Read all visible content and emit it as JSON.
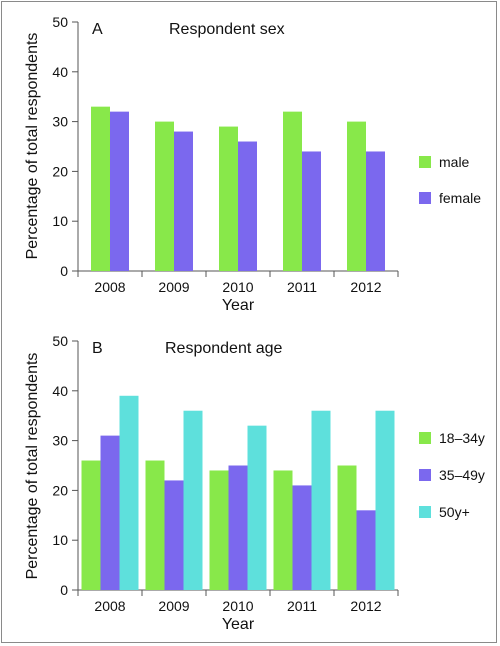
{
  "chart_data": [
    {
      "type": "bar",
      "panel_label": "A",
      "title": "Respondent sex",
      "xlabel": "Year",
      "ylabel": "Percentage of total respondents",
      "ylim": [
        0,
        50
      ],
      "yticks": [
        "0",
        "10",
        "20",
        "30",
        "40",
        "50"
      ],
      "categories": [
        "2008",
        "2009",
        "2010",
        "2011",
        "2012"
      ],
      "series": [
        {
          "name": "male",
          "color": "#88e84a",
          "values": [
            33,
            30,
            29,
            32,
            30
          ]
        },
        {
          "name": "female",
          "color": "#7b68ee",
          "values": [
            32,
            28,
            26,
            24,
            24
          ]
        }
      ],
      "legend_position": "right",
      "grid": false
    },
    {
      "type": "bar",
      "panel_label": "B",
      "title": "Respondent age",
      "xlabel": "Year",
      "ylabel": "Percentage of total respondents",
      "ylim": [
        0,
        50
      ],
      "yticks": [
        "0",
        "10",
        "20",
        "30",
        "40",
        "50"
      ],
      "categories": [
        "2008",
        "2009",
        "2010",
        "2011",
        "2012"
      ],
      "series": [
        {
          "name": "18–34y",
          "color": "#88e84a",
          "values": [
            26,
            26,
            24,
            24,
            25
          ]
        },
        {
          "name": "35–49y",
          "color": "#7b68ee",
          "values": [
            31,
            22,
            25,
            21,
            16
          ]
        },
        {
          "name": "50y+",
          "color": "#5ee0dc",
          "values": [
            39,
            36,
            33,
            36,
            36
          ]
        }
      ],
      "legend_position": "right",
      "grid": false
    }
  ]
}
